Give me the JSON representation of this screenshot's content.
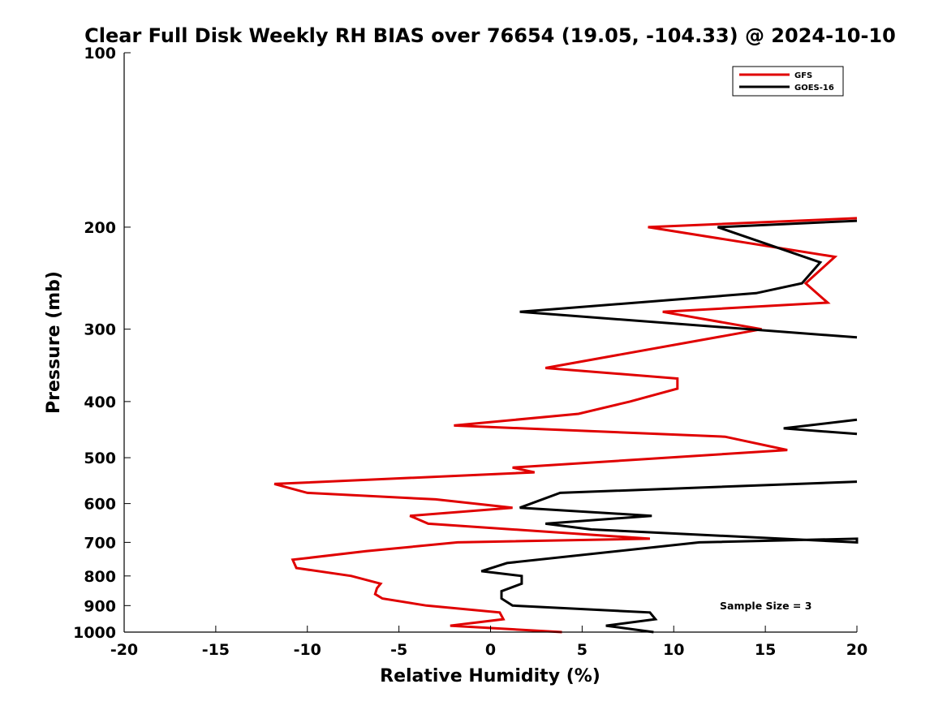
{
  "chart_data": {
    "type": "line",
    "title": "Clear Full Disk Weekly RH BIAS over 76654 (19.05, -104.33) @ 2024-10-10",
    "xlabel": "Relative Humidity (%)",
    "ylabel": "Pressure (mb)",
    "xlim": [
      -20,
      20
    ],
    "ylim": [
      1000,
      100
    ],
    "yscale": "log",
    "x_ticks": [
      -20,
      -15,
      -10,
      -5,
      0,
      5,
      10,
      15,
      20
    ],
    "x_tick_labels": [
      "-20",
      "-15",
      "-10",
      "-5",
      "0",
      "5",
      "10",
      "15",
      "20"
    ],
    "y_ticks": [
      100,
      200,
      300,
      400,
      500,
      600,
      700,
      800,
      900,
      1000
    ],
    "y_tick_labels": [
      "100",
      "200",
      "300",
      "400",
      "500",
      "600",
      "700",
      "800",
      "900",
      "1000"
    ],
    "grid": false,
    "legend_position": "top-right",
    "annotation": "Sample Size = 3",
    "series": [
      {
        "name": "GFS",
        "color": "#e00000",
        "points": [
          {
            "p": 1000,
            "rh": 3.9
          },
          {
            "p": 975,
            "rh": -2.2
          },
          {
            "p": 950,
            "rh": 0.7
          },
          {
            "p": 925,
            "rh": 0.5
          },
          {
            "p": 900,
            "rh": -3.5
          },
          {
            "p": 875,
            "rh": -5.9
          },
          {
            "p": 860,
            "rh": -6.3
          },
          {
            "p": 840,
            "rh": -6.2
          },
          {
            "p": 825,
            "rh": -6.0
          },
          {
            "p": 800,
            "rh": -7.6
          },
          {
            "p": 775,
            "rh": -10.6
          },
          {
            "p": 750,
            "rh": -10.8
          },
          {
            "p": 725,
            "rh": -6.8
          },
          {
            "p": 700,
            "rh": -1.8
          },
          {
            "p": 690,
            "rh": 8.7
          },
          {
            "p": 650,
            "rh": -3.4
          },
          {
            "p": 630,
            "rh": -4.4
          },
          {
            "p": 610,
            "rh": 1.2
          },
          {
            "p": 590,
            "rh": -3.0
          },
          {
            "p": 575,
            "rh": -10.0
          },
          {
            "p": 555,
            "rh": -11.8
          },
          {
            "p": 530,
            "rh": 2.4
          },
          {
            "p": 520,
            "rh": 1.2
          },
          {
            "p": 485,
            "rh": 16.2
          },
          {
            "p": 460,
            "rh": 12.8
          },
          {
            "p": 440,
            "rh": -2.0
          },
          {
            "p": 420,
            "rh": 4.8
          },
          {
            "p": 400,
            "rh": 7.6
          },
          {
            "p": 380,
            "rh": 10.2
          },
          {
            "p": 365,
            "rh": 10.2
          },
          {
            "p": 350,
            "rh": 3.0
          },
          {
            "p": 300,
            "rh": 14.8
          },
          {
            "p": 280,
            "rh": 9.4
          },
          {
            "p": 270,
            "rh": 18.4
          },
          {
            "p": 250,
            "rh": 17.2
          },
          {
            "p": 225,
            "rh": 18.8
          },
          {
            "p": 200,
            "rh": 8.6
          },
          {
            "p": 193,
            "rh": 20.0
          }
        ]
      },
      {
        "name": "GOES-16",
        "color": "#000000",
        "segments": [
          [
            {
              "p": 1000,
              "rh": 8.9
            },
            {
              "p": 975,
              "rh": 6.3
            },
            {
              "p": 950,
              "rh": 9.0
            },
            {
              "p": 925,
              "rh": 8.7
            },
            {
              "p": 900,
              "rh": 1.2
            },
            {
              "p": 875,
              "rh": 0.6
            },
            {
              "p": 850,
              "rh": 0.6
            },
            {
              "p": 825,
              "rh": 1.7
            },
            {
              "p": 800,
              "rh": 1.7
            },
            {
              "p": 785,
              "rh": -0.5
            },
            {
              "p": 760,
              "rh": 0.9
            },
            {
              "p": 700,
              "rh": 11.4
            },
            {
              "p": 690,
              "rh": 20.0
            },
            {
              "p": 700,
              "rh": 20.0
            },
            {
              "p": 665,
              "rh": 5.5
            },
            {
              "p": 650,
              "rh": 3.0
            },
            {
              "p": 630,
              "rh": 8.8
            },
            {
              "p": 610,
              "rh": 1.6
            },
            {
              "p": 575,
              "rh": 3.8
            },
            {
              "p": 550,
              "rh": 20.0
            }
          ],
          [
            {
              "p": 455,
              "rh": 20.0
            },
            {
              "p": 445,
              "rh": 16.0
            },
            {
              "p": 430,
              "rh": 20.0
            }
          ],
          [
            {
              "p": 310,
              "rh": 20.0
            },
            {
              "p": 280,
              "rh": 1.6
            },
            {
              "p": 260,
              "rh": 14.5
            },
            {
              "p": 250,
              "rh": 17.0
            },
            {
              "p": 230,
              "rh": 18.0
            },
            {
              "p": 200,
              "rh": 12.4
            },
            {
              "p": 195,
              "rh": 20.0
            }
          ]
        ]
      }
    ]
  }
}
